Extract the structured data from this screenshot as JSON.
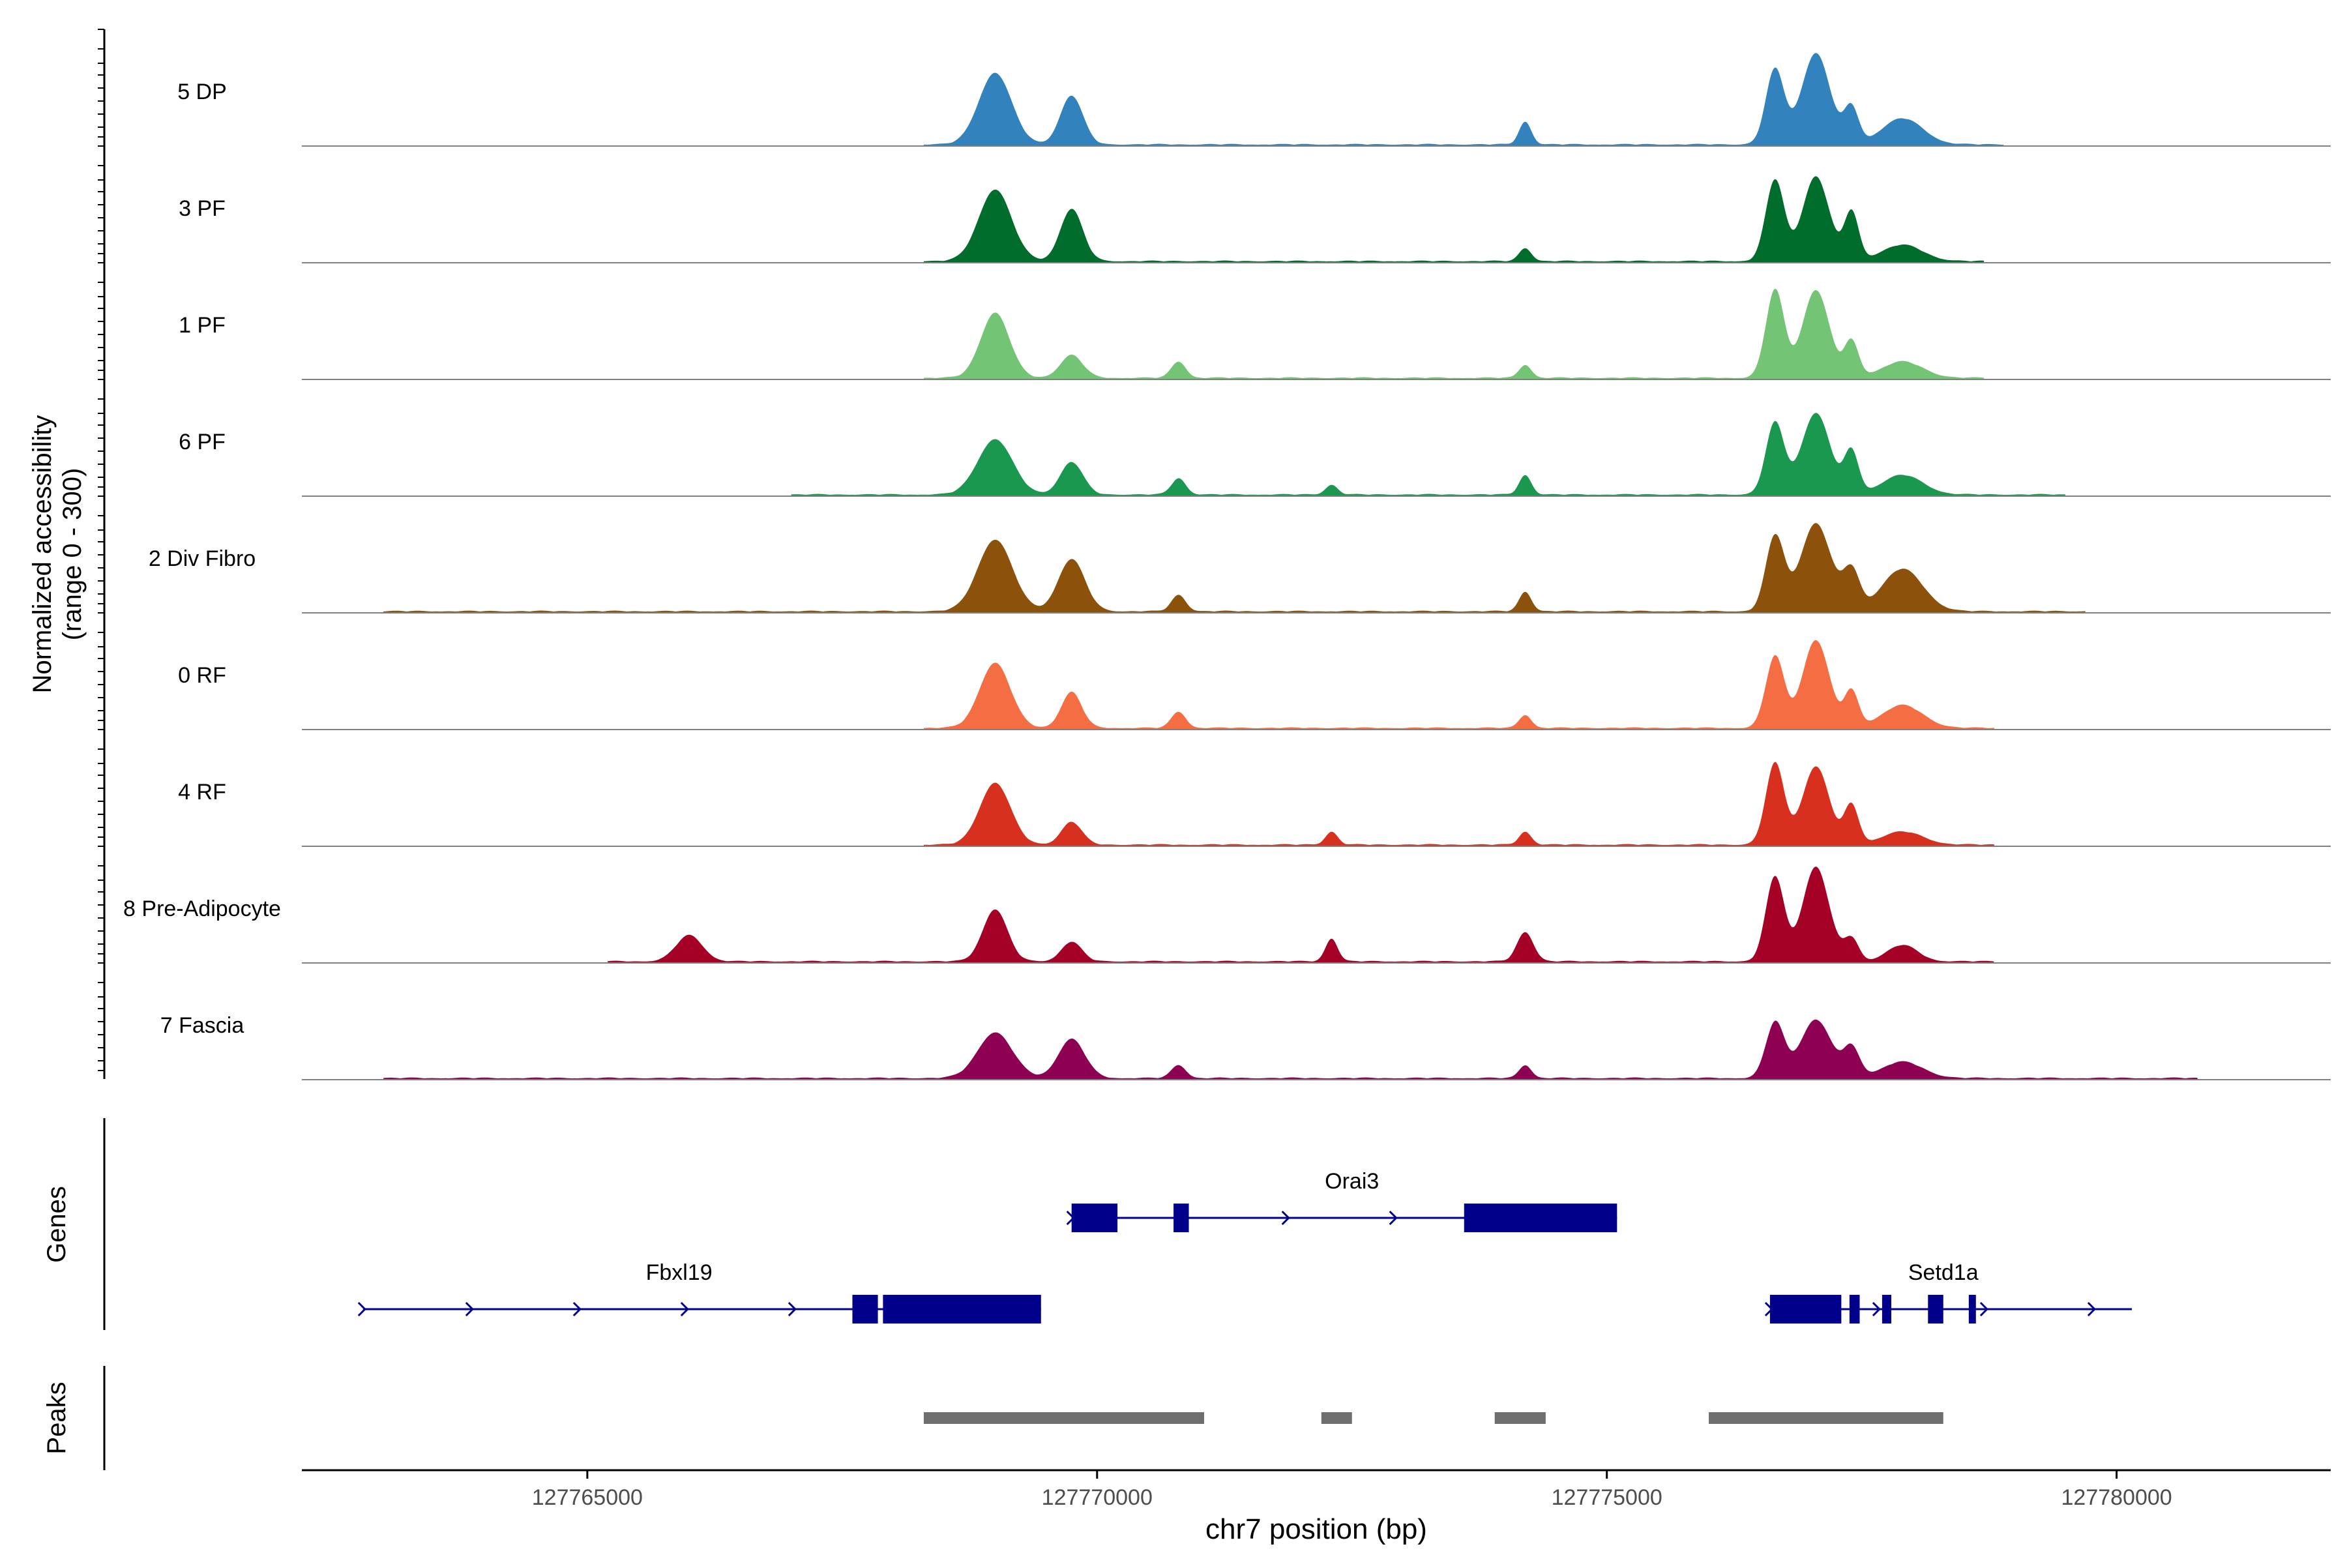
{
  "chart_data": {
    "type": "area",
    "title": "",
    "ylabel_line1": "Normalized accessibility",
    "ylabel_line2": "(range 0 - 300)",
    "xlabel": "chr7 position (bp)",
    "xlim": [
      127762200,
      127782100
    ],
    "ylim": [
      0,
      300
    ],
    "xticks": [
      127765000,
      127770000,
      127775000,
      127780000
    ],
    "xtick_labels": [
      "127765000",
      "127770000",
      "127775000",
      "127780000"
    ],
    "tracks": [
      {
        "name": "5 DP",
        "color": "#3182BD",
        "peaks": [
          [
            127769000,
            220,
            160
          ],
          [
            127769750,
            150,
            110
          ],
          [
            127774200,
            70,
            60
          ],
          [
            127776650,
            230,
            90
          ],
          [
            127777050,
            280,
            140
          ],
          [
            127777400,
            110,
            70
          ],
          [
            127777900,
            80,
            200
          ]
        ],
        "range": [
          127768300,
          127778900
        ]
      },
      {
        "name": "3 PF",
        "color": "#006D2C",
        "peaks": [
          [
            127769000,
            220,
            160
          ],
          [
            127769750,
            160,
            110
          ],
          [
            127774200,
            40,
            60
          ],
          [
            127776650,
            250,
            90
          ],
          [
            127777050,
            260,
            130
          ],
          [
            127777400,
            150,
            70
          ],
          [
            127777900,
            50,
            200
          ]
        ],
        "range": [
          127768300,
          127778700
        ]
      },
      {
        "name": "1 PF",
        "color": "#74C476",
        "peaks": [
          [
            127769000,
            200,
            140
          ],
          [
            127769750,
            70,
            110
          ],
          [
            127770800,
            50,
            70
          ],
          [
            127774200,
            40,
            60
          ],
          [
            127776650,
            270,
            90
          ],
          [
            127777050,
            270,
            130
          ],
          [
            127777400,
            110,
            70
          ],
          [
            127777900,
            50,
            200
          ]
        ],
        "range": [
          127768300,
          127778700
        ]
      },
      {
        "name": "6 PF",
        "color": "#1A9850",
        "peaks": [
          [
            127769000,
            170,
            170
          ],
          [
            127769750,
            100,
            110
          ],
          [
            127770800,
            50,
            70
          ],
          [
            127772300,
            30,
            60
          ],
          [
            127774200,
            60,
            60
          ],
          [
            127776650,
            220,
            90
          ],
          [
            127777050,
            250,
            140
          ],
          [
            127777400,
            130,
            70
          ],
          [
            127777900,
            60,
            200
          ]
        ],
        "range": [
          127767000,
          127779500
        ]
      },
      {
        "name": "2 Div Fibro",
        "color": "#8C510A",
        "peaks": [
          [
            127769000,
            220,
            170
          ],
          [
            127769750,
            160,
            130
          ],
          [
            127770800,
            50,
            70
          ],
          [
            127774200,
            60,
            60
          ],
          [
            127776650,
            230,
            90
          ],
          [
            127777050,
            270,
            150
          ],
          [
            127777400,
            120,
            80
          ],
          [
            127777900,
            130,
            200
          ]
        ],
        "range": [
          127763000,
          127779700
        ]
      },
      {
        "name": "0 RF",
        "color": "#F46D43",
        "peaks": [
          [
            127769000,
            200,
            150
          ],
          [
            127769750,
            110,
            100
          ],
          [
            127770800,
            50,
            70
          ],
          [
            127774200,
            40,
            60
          ],
          [
            127776650,
            220,
            90
          ],
          [
            127777050,
            270,
            130
          ],
          [
            127777400,
            110,
            70
          ],
          [
            127777900,
            70,
            200
          ]
        ],
        "range": [
          127768300,
          127778800
        ]
      },
      {
        "name": "4 RF",
        "color": "#D7301F",
        "peaks": [
          [
            127769000,
            190,
            150
          ],
          [
            127769750,
            70,
            100
          ],
          [
            127772300,
            40,
            60
          ],
          [
            127774200,
            40,
            60
          ],
          [
            127776650,
            250,
            90
          ],
          [
            127777050,
            240,
            130
          ],
          [
            127777400,
            120,
            70
          ],
          [
            127777900,
            40,
            200
          ]
        ],
        "range": [
          127768300,
          127778800
        ]
      },
      {
        "name": "8 Pre-Adipocyte",
        "color": "#A50026",
        "peaks": [
          [
            127766000,
            80,
            130
          ],
          [
            127769000,
            160,
            120
          ],
          [
            127769750,
            60,
            100
          ],
          [
            127772300,
            70,
            60
          ],
          [
            127774200,
            90,
            80
          ],
          [
            127776650,
            260,
            90
          ],
          [
            127777050,
            290,
            130
          ],
          [
            127777400,
            70,
            70
          ],
          [
            127777900,
            50,
            150
          ]
        ],
        "range": [
          127765200,
          127778800
        ]
      },
      {
        "name": "7 Fascia",
        "color": "#8E0152",
        "peaks": [
          [
            127769000,
            140,
            170
          ],
          [
            127769750,
            120,
            130
          ],
          [
            127770800,
            40,
            70
          ],
          [
            127774200,
            40,
            60
          ],
          [
            127776650,
            170,
            90
          ],
          [
            127777050,
            180,
            150
          ],
          [
            127777400,
            90,
            80
          ],
          [
            127777900,
            50,
            200
          ]
        ],
        "range": [
          127763000,
          127780800
        ]
      }
    ],
    "genes_label": "Genes",
    "genes": [
      {
        "name": "Orai3",
        "start": 127769750,
        "end": 127775100,
        "strand": "+",
        "row": 1,
        "label_x": 127772500,
        "exons": [
          [
            127769750,
            127770200,
            "thick"
          ],
          [
            127770750,
            127770900,
            "thick"
          ],
          [
            127773600,
            127775100,
            "thick"
          ]
        ]
      },
      {
        "name": "Fbxl19",
        "start": 127762800,
        "end": 127769450,
        "strand": "+",
        "row": 2,
        "label_x": 127765900,
        "exons": [
          [
            127767600,
            127767850,
            "thick"
          ],
          [
            127767900,
            127769450,
            "thick"
          ]
        ]
      },
      {
        "name": "Setd1a",
        "start": 127776600,
        "end": 127780150,
        "strand": "+",
        "row": 2,
        "label_x": 127778300,
        "exons": [
          [
            127776600,
            127777300,
            "thick"
          ],
          [
            127777380,
            127777480,
            "thick"
          ],
          [
            127777700,
            127777790,
            "thick"
          ],
          [
            127778150,
            127778300,
            "thick"
          ],
          [
            127778550,
            127778620,
            "thick"
          ]
        ]
      }
    ],
    "peaks_label": "Peaks",
    "peak_regions": [
      [
        127768300,
        127771050
      ],
      [
        127772200,
        127772500
      ],
      [
        127773900,
        127774400
      ],
      [
        127776000,
        127778300
      ]
    ],
    "colors": {
      "gene": "#00008B",
      "peak_region": "#6E6E6E",
      "baseline": "#808080",
      "axis": "#000000",
      "text": "#000000",
      "tick_text": "#4D4D4D"
    }
  }
}
